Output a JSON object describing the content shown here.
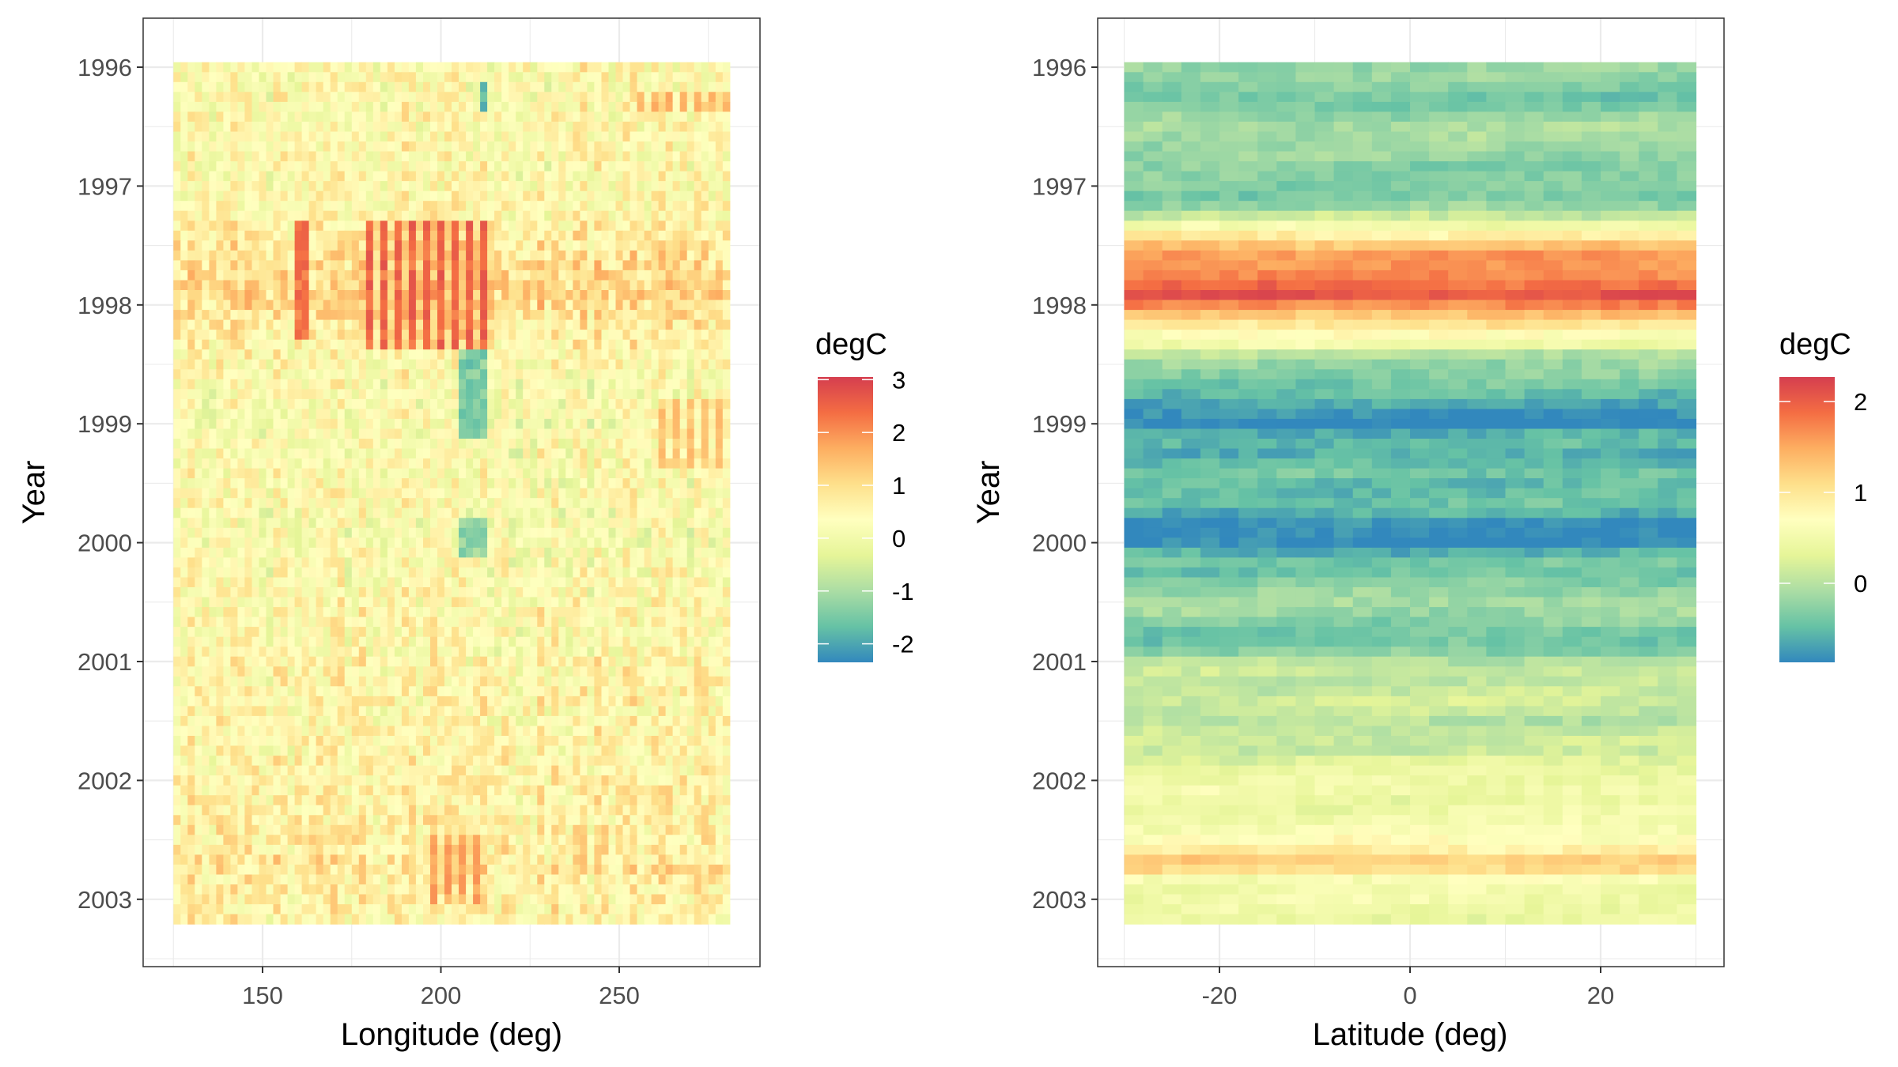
{
  "chart_data": [
    {
      "type": "heatmap",
      "xlabel": "Longitude (deg)",
      "ylabel": "Year",
      "xlim": [
        125,
        281
      ],
      "x_ticks": [
        150,
        200,
        250
      ],
      "y_ticks": [
        "1996",
        "1997",
        "1998",
        "1999",
        "2000",
        "2001",
        "2002",
        "2003"
      ],
      "y_range": [
        "1996-01",
        "2003-03"
      ],
      "cell_lon_width_deg": 2,
      "grid": true,
      "legend": {
        "title": "degC",
        "ticks": [
          "3",
          "2",
          "1",
          "0",
          "-1",
          "-2"
        ],
        "limits": [
          -2.35,
          3.05
        ],
        "placement": "right"
      },
      "palette": [
        "#3288BD",
        "#66C2A5",
        "#ABDDA4",
        "#E6F598",
        "#FFFFBF",
        "#FEE08B",
        "#FDAE61",
        "#F46D43",
        "#D53E4F"
      ],
      "monthly_mean": [
        0.4,
        0.4,
        0.35,
        0.35,
        0.35,
        0.4,
        0.4,
        0.4,
        0.4,
        0.4,
        0.35,
        0.35,
        0.35,
        0.35,
        0.4,
        0.5,
        0.6,
        0.7,
        0.8,
        0.9,
        0.9,
        0.95,
        1.0,
        1.1,
        1.0,
        0.85,
        0.75,
        0.65,
        0.6,
        0.45,
        0.4,
        0.35,
        0.3,
        0.3,
        0.25,
        0.2,
        0.2,
        0.25,
        0.3,
        0.25,
        0.3,
        0.3,
        0.3,
        0.3,
        0.3,
        0.25,
        0.2,
        0.2,
        0.2,
        0.25,
        0.3,
        0.3,
        0.35,
        0.4,
        0.4,
        0.4,
        0.35,
        0.35,
        0.35,
        0.35,
        0.45,
        0.5,
        0.45,
        0.5,
        0.5,
        0.5,
        0.45,
        0.5,
        0.5,
        0.5,
        0.55,
        0.55,
        0.6,
        0.6,
        0.55,
        0.6,
        0.6,
        0.65,
        0.65,
        0.7,
        0.8,
        0.8,
        0.65,
        0.6,
        0.6,
        0.6,
        0.55
      ],
      "anomalies": [
        {
          "lon": [
            180,
            215
          ],
          "years": [
            1997.3,
            1998.4
          ],
          "value": 2.8
        },
        {
          "lon": [
            160,
            163
          ],
          "years": [
            1997.3,
            1998.3
          ],
          "value": 2.6
        },
        {
          "lon": [
            205,
            213
          ],
          "years": [
            1998.4,
            1999.1
          ],
          "value": -1.8
        },
        {
          "lon": [
            205,
            213
          ],
          "years": [
            1999.8,
            2000.1
          ],
          "value": -1.6
        },
        {
          "lon": [
            211,
            213
          ],
          "years": [
            1996.1,
            1996.4
          ],
          "value": -2.0
        },
        {
          "lon": [
            198,
            213
          ],
          "years": [
            2002.5,
            2003.0
          ],
          "value": 2.0
        },
        {
          "lon": [
            255,
            280
          ],
          "years": [
            1996.2,
            1996.4
          ],
          "value": 1.8
        },
        {
          "lon": [
            262,
            280
          ],
          "years": [
            1998.8,
            1999.4
          ],
          "value": 1.6
        }
      ]
    },
    {
      "type": "heatmap",
      "xlabel": "Latitude (deg)",
      "ylabel": "Year",
      "xlim": [
        -30,
        30
      ],
      "x_ticks": [
        -20,
        0,
        20
      ],
      "y_ticks": [
        "1996",
        "1997",
        "1998",
        "1999",
        "2000",
        "2001",
        "2002",
        "2003"
      ],
      "y_range": [
        "1996-01",
        "2003-03"
      ],
      "cell_lat_width_deg": 2,
      "grid": true,
      "legend": {
        "title": "degC",
        "ticks": [
          "2",
          "1",
          "0"
        ],
        "limits": [
          -0.87,
          2.27
        ],
        "placement": "right"
      },
      "palette": [
        "#3288BD",
        "#66C2A5",
        "#ABDDA4",
        "#E6F598",
        "#FFFFBF",
        "#FEE08B",
        "#FDAE61",
        "#F46D43",
        "#D53E4F"
      ],
      "monthly_mean": [
        -0.2,
        -0.2,
        -0.3,
        -0.4,
        -0.35,
        -0.2,
        -0.1,
        -0.1,
        -0.15,
        -0.2,
        -0.3,
        -0.3,
        -0.3,
        -0.35,
        -0.2,
        0.1,
        0.5,
        0.9,
        1.3,
        1.6,
        1.6,
        1.7,
        1.9,
        2.1,
        1.7,
        1.3,
        1.0,
        0.7,
        0.5,
        0.0,
        -0.2,
        -0.3,
        -0.4,
        -0.5,
        -0.65,
        -0.8,
        -0.9,
        -0.6,
        -0.5,
        -0.6,
        -0.5,
        -0.4,
        -0.5,
        -0.5,
        -0.45,
        -0.6,
        -0.8,
        -0.85,
        -0.9,
        -0.6,
        -0.4,
        -0.45,
        -0.3,
        -0.2,
        -0.1,
        -0.15,
        -0.3,
        -0.4,
        -0.4,
        -0.3,
        0.0,
        0.1,
        0.05,
        0.1,
        0.15,
        0.1,
        0.0,
        0.1,
        0.15,
        0.1,
        0.3,
        0.4,
        0.45,
        0.5,
        0.4,
        0.45,
        0.5,
        0.6,
        0.7,
        0.9,
        1.2,
        1.1,
        0.6,
        0.5,
        0.5,
        0.45,
        0.4
      ]
    }
  ]
}
